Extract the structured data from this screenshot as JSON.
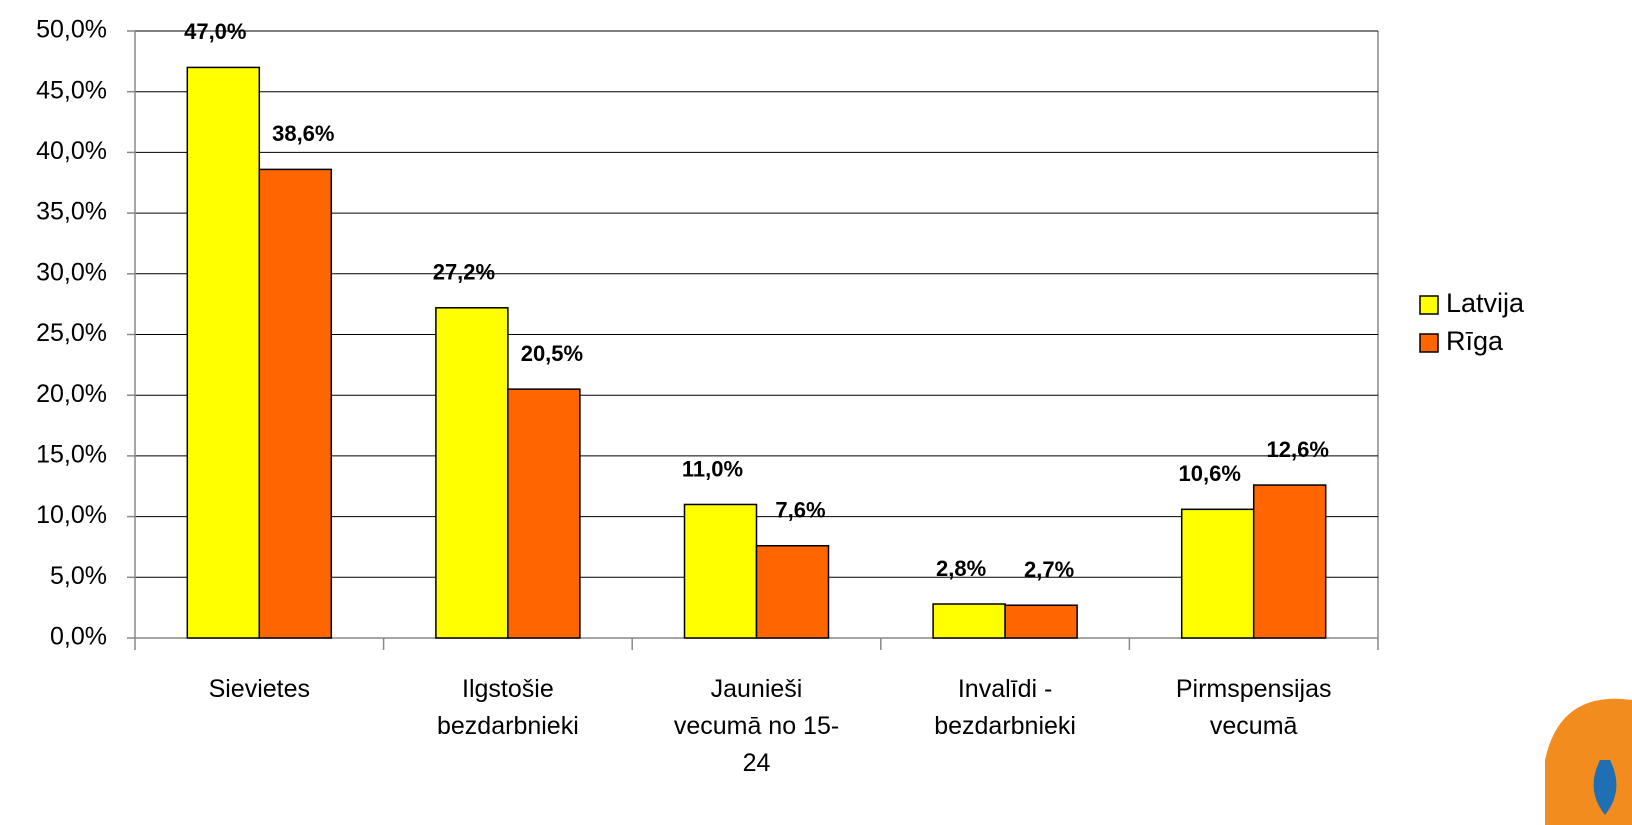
{
  "chart_data": {
    "type": "bar",
    "categories": [
      "Sievietes",
      "Ilgstošie bezdarbnieki",
      "Jaunieši vecumā no 15-24",
      "Invalīdi - bezdarbnieki",
      "Pirmspensijas vecumā"
    ],
    "series": [
      {
        "name": "Latvija",
        "color": "#ffff00",
        "values": [
          47.0,
          27.2,
          11.0,
          2.8,
          10.6
        ],
        "value_labels": [
          "47,0%",
          "27,2%",
          "11,0%",
          "2,8%",
          "10,6%"
        ]
      },
      {
        "name": "Rīga",
        "color": "#ff6600",
        "values": [
          38.6,
          20.5,
          7.6,
          2.7,
          12.6
        ],
        "value_labels": [
          "38,6%",
          "20,5%",
          "7,6%",
          "2,7%",
          "12,6%"
        ]
      }
    ],
    "ylim": [
      0,
      50
    ],
    "yticks": [
      {
        "value": 0,
        "label": "0,0%"
      },
      {
        "value": 5,
        "label": "5,0%"
      },
      {
        "value": 10,
        "label": "10,0%"
      },
      {
        "value": 15,
        "label": "15,0%"
      },
      {
        "value": 20,
        "label": "20,0%"
      },
      {
        "value": 25,
        "label": "25,0%"
      },
      {
        "value": 30,
        "label": "30,0%"
      },
      {
        "value": 35,
        "label": "35,0%"
      },
      {
        "value": 40,
        "label": "40,0%"
      },
      {
        "value": 45,
        "label": "45,0%"
      },
      {
        "value": 50,
        "label": "50,0%"
      }
    ],
    "grid": true,
    "legend": "right"
  }
}
